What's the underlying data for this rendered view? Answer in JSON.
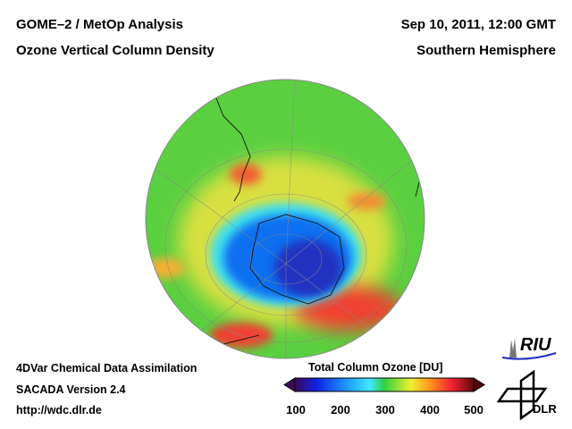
{
  "header": {
    "title_line1": "GOME–2 / MetOp Analysis",
    "title_line2": "Ozone Vertical Column Density",
    "date": "Sep 10, 2011, 12:00 GMT",
    "region": "Southern Hemisphere"
  },
  "footer": {
    "method": "4DVar Chemical Data Assimilation",
    "version": "SACADA Version 2.4",
    "url": "http://wdc.dlr.de"
  },
  "colorbar": {
    "title": "Total Column Ozone [DU]",
    "ticks": [
      "100",
      "200",
      "300",
      "400",
      "500"
    ],
    "range": [
      100,
      500
    ],
    "colors": [
      "#3a0a5a",
      "#1020e0",
      "#20a0ff",
      "#40e8ff",
      "#30d040",
      "#f0f030",
      "#ff9020",
      "#f02030",
      "#600808"
    ]
  },
  "logos": {
    "riu": "RIU",
    "dlr": "DLR"
  }
}
